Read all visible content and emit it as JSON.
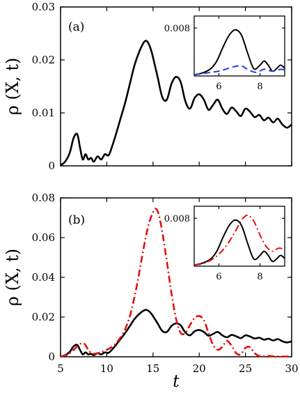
{
  "chart_data": [
    {
      "type": "line",
      "panel_label": "(a)",
      "xlabel": "",
      "ylabel": "ρ (X, t)",
      "xlim": [
        5,
        30
      ],
      "ylim": [
        0,
        0.03
      ],
      "xticks": [
        5,
        10,
        15,
        20,
        25,
        30
      ],
      "xtick_labels": [],
      "yticks": [
        0,
        0.01,
        0.02,
        0.03
      ],
      "ytick_labels": [
        "0",
        "0.01",
        "0.02",
        "0.03"
      ],
      "grid": false,
      "series": [
        {
          "color": "#000000",
          "style": "solid",
          "x": [
            5,
            5.5,
            6,
            6.4,
            6.8,
            7.1,
            7.4,
            7.7,
            8.0,
            8.3,
            8.6,
            9.0,
            9.4,
            9.8,
            10.2,
            10.6,
            11.0,
            11.5,
            12.0,
            12.5,
            13.0,
            13.5,
            14.0,
            14.3,
            14.6,
            14.9,
            15.2,
            15.5,
            16.0,
            16.5,
            17.0,
            17.5,
            18.0,
            18.5,
            19.0,
            19.5,
            20.0,
            20.5,
            21.0,
            21.5,
            22.0,
            22.5,
            23.0,
            23.5,
            24.0,
            24.5,
            25.0,
            25.5,
            26.0,
            26.5,
            27.0,
            27.5,
            28.0,
            28.5,
            29.0,
            29.5,
            30.0
          ],
          "y": [
            0.0001,
            0.0008,
            0.0025,
            0.0052,
            0.006,
            0.0035,
            0.0012,
            0.0022,
            0.0012,
            0.0015,
            0.0008,
            0.0018,
            0.0012,
            0.0022,
            0.002,
            0.0038,
            0.006,
            0.009,
            0.012,
            0.0155,
            0.019,
            0.0215,
            0.0233,
            0.0236,
            0.0228,
            0.0212,
            0.019,
            0.0168,
            0.013,
            0.0125,
            0.0155,
            0.0168,
            0.0158,
            0.0122,
            0.0108,
            0.0128,
            0.0135,
            0.0125,
            0.0106,
            0.0115,
            0.0125,
            0.0108,
            0.0098,
            0.011,
            0.0103,
            0.0094,
            0.0108,
            0.0102,
            0.0092,
            0.0096,
            0.0086,
            0.0091,
            0.0082,
            0.0089,
            0.0078,
            0.0072,
            0.0078
          ]
        }
      ],
      "inset": {
        "xlim": [
          4.8,
          9.2
        ],
        "ylim": [
          0,
          0.01
        ],
        "xticks": [
          6,
          8
        ],
        "xtick_labels": [
          "6",
          "8"
        ],
        "ytick_labels": [
          "0.008"
        ],
        "yticks": [
          0.008
        ],
        "series": [
          {
            "color": "#000000",
            "style": "solid",
            "x": [
              4.8,
              5.2,
              5.6,
              5.9,
              6.2,
              6.5,
              6.8,
              7.1,
              7.4,
              7.7,
              8.0,
              8.2,
              8.4,
              8.6,
              8.8,
              9.0,
              9.2
            ],
            "y": [
              0.0002,
              0.0005,
              0.0012,
              0.0025,
              0.0048,
              0.0068,
              0.0077,
              0.0068,
              0.0038,
              0.0012,
              0.0018,
              0.0025,
              0.0018,
              0.0008,
              0.0012,
              0.0018,
              0.0013
            ]
          },
          {
            "color": "#1f3fdc",
            "style": "dashed",
            "x": [
              4.8,
              5.2,
              5.6,
              6.0,
              6.4,
              6.8,
              7.1,
              7.4,
              7.8,
              8.2,
              8.6,
              9.0,
              9.2
            ],
            "y": [
              0.0002,
              0.0004,
              0.0006,
              0.0008,
              0.0012,
              0.0016,
              0.0017,
              0.0011,
              0.0006,
              0.0011,
              0.0008,
              0.0011,
              0.001
            ]
          }
        ]
      }
    },
    {
      "type": "line",
      "panel_label": "(b)",
      "xlabel": "t",
      "ylabel": "ρ (X, t)",
      "xlim": [
        5,
        30
      ],
      "ylim": [
        0,
        0.08
      ],
      "xticks": [
        5,
        10,
        15,
        20,
        25,
        30
      ],
      "xtick_labels": [
        "5",
        "10",
        "15",
        "20",
        "25",
        "30"
      ],
      "yticks": [
        0,
        0.02,
        0.04,
        0.06,
        0.08
      ],
      "ytick_labels": [
        "0",
        "0.02",
        "0.04",
        "0.06",
        "0.08"
      ],
      "grid": false,
      "series": [
        {
          "color": "#000000",
          "style": "solid",
          "x": [
            5,
            5.5,
            6,
            6.4,
            6.8,
            7.1,
            7.4,
            7.7,
            8.0,
            8.3,
            8.6,
            9.0,
            9.4,
            9.8,
            10.2,
            10.6,
            11.0,
            11.5,
            12.0,
            12.5,
            13.0,
            13.5,
            14.0,
            14.3,
            14.6,
            14.9,
            15.2,
            15.5,
            16.0,
            16.5,
            17.0,
            17.5,
            18.0,
            18.5,
            19.0,
            19.5,
            20.0,
            20.5,
            21.0,
            21.5,
            22.0,
            22.5,
            23.0,
            23.5,
            24.0,
            24.5,
            25.0,
            25.5,
            26.0,
            26.5,
            27.0,
            27.5,
            28.0,
            28.5,
            29.0,
            29.5,
            30.0
          ],
          "y": [
            0.0001,
            0.0008,
            0.0025,
            0.0052,
            0.006,
            0.0035,
            0.0012,
            0.0022,
            0.0012,
            0.0015,
            0.0008,
            0.0018,
            0.0012,
            0.0022,
            0.002,
            0.0038,
            0.006,
            0.009,
            0.012,
            0.0155,
            0.019,
            0.0215,
            0.0233,
            0.0236,
            0.0228,
            0.0212,
            0.019,
            0.0168,
            0.013,
            0.0125,
            0.0155,
            0.0168,
            0.0158,
            0.0122,
            0.0108,
            0.0128,
            0.0135,
            0.0125,
            0.0106,
            0.0115,
            0.0125,
            0.0108,
            0.0098,
            0.011,
            0.0103,
            0.0094,
            0.0108,
            0.0102,
            0.0092,
            0.0096,
            0.0086,
            0.0091,
            0.0082,
            0.0089,
            0.0078,
            0.0072,
            0.0078
          ]
        },
        {
          "color": "#e01010",
          "style": "dashdot",
          "x": [
            5,
            5.5,
            6,
            6.5,
            7.0,
            7.5,
            7.8,
            8.1,
            8.5,
            9.0,
            9.5,
            10.0,
            10.5,
            11.0,
            11.5,
            12.0,
            12.5,
            13.0,
            13.5,
            14.0,
            14.5,
            15.0,
            15.3,
            15.6,
            16.0,
            16.5,
            17.0,
            17.5,
            18.0,
            18.5,
            19.0,
            19.5,
            20.0,
            20.5,
            21.0,
            21.5,
            22.0,
            22.5,
            23.0,
            23.5,
            24.0,
            24.5,
            25.0,
            25.5,
            26.0,
            26.5,
            27.0,
            27.5,
            28.0,
            28.5,
            29.0,
            29.5,
            30.0
          ],
          "y": [
            0.0001,
            0.0006,
            0.0018,
            0.0038,
            0.0062,
            0.0068,
            0.005,
            0.0028,
            0.0015,
            0.0018,
            0.0025,
            0.0035,
            0.0048,
            0.0068,
            0.0098,
            0.014,
            0.0205,
            0.03,
            0.042,
            0.055,
            0.066,
            0.0728,
            0.0745,
            0.072,
            0.063,
            0.048,
            0.032,
            0.019,
            0.012,
            0.012,
            0.016,
            0.0195,
            0.0205,
            0.0185,
            0.012,
            0.006,
            0.0035,
            0.005,
            0.008,
            0.0055,
            0.0018,
            0.0012,
            0.0045,
            0.0048,
            0.0018,
            0.0004,
            0.0003,
            0.0004,
            0.0002,
            0.0002,
            0.0001,
            0.0001,
            0.0001
          ]
        }
      ],
      "inset": {
        "xlim": [
          4.8,
          9.2
        ],
        "ylim": [
          0,
          0.01
        ],
        "xticks": [
          6,
          8
        ],
        "xtick_labels": [
          "6",
          "8"
        ],
        "ytick_labels": [
          "0.008"
        ],
        "yticks": [
          0.008
        ],
        "series": [
          {
            "color": "#000000",
            "style": "solid",
            "x": [
              4.8,
              5.2,
              5.6,
              5.9,
              6.2,
              6.5,
              6.8,
              7.1,
              7.4,
              7.7,
              8.0,
              8.2,
              8.4,
              8.6,
              8.8,
              9.0,
              9.2
            ],
            "y": [
              0.0002,
              0.0005,
              0.0012,
              0.0025,
              0.0048,
              0.0068,
              0.0077,
              0.0068,
              0.0038,
              0.0012,
              0.0018,
              0.0025,
              0.0018,
              0.0008,
              0.0012,
              0.0018,
              0.0013
            ]
          },
          {
            "color": "#e01010",
            "style": "dashdot",
            "x": [
              4.8,
              5.2,
              5.6,
              6.0,
              6.4,
              6.8,
              7.1,
              7.4,
              7.7,
              8.0,
              8.3,
              8.6,
              8.9,
              9.2
            ],
            "y": [
              0.0002,
              0.0004,
              0.001,
              0.002,
              0.0036,
              0.0058,
              0.0077,
              0.0085,
              0.0075,
              0.0052,
              0.0033,
              0.0025,
              0.003,
              0.0028
            ]
          }
        ]
      }
    }
  ]
}
